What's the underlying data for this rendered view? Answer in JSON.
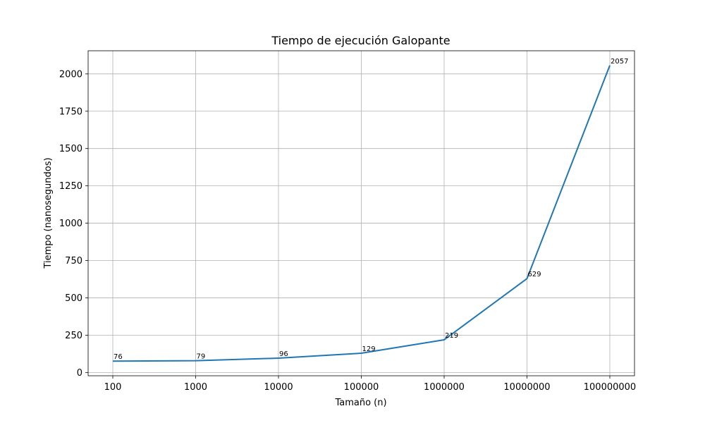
{
  "chart_data": {
    "type": "line",
    "title": "Tiempo de ejecución Galopante",
    "xlabel": "Tamaño (n)",
    "ylabel": "Tiempo (nanosegundos)",
    "categories": [
      "100",
      "1000",
      "10000",
      "100000",
      "1000000",
      "10000000",
      "100000000"
    ],
    "series": [
      {
        "values": [
          76,
          79,
          96,
          129,
          219,
          629,
          2057
        ],
        "labels": [
          "76",
          "79",
          "96",
          "129",
          "219",
          "629",
          "2057"
        ],
        "color": "#1f77b4"
      }
    ],
    "yticks": [
      0,
      250,
      500,
      750,
      1000,
      1250,
      1500,
      1750,
      2000
    ],
    "ytick_labels": [
      "0",
      "250",
      "500",
      "750",
      "1000",
      "1250",
      "1500",
      "1750",
      "2000"
    ],
    "ylim": [
      -22,
      2155
    ],
    "grid": true
  }
}
